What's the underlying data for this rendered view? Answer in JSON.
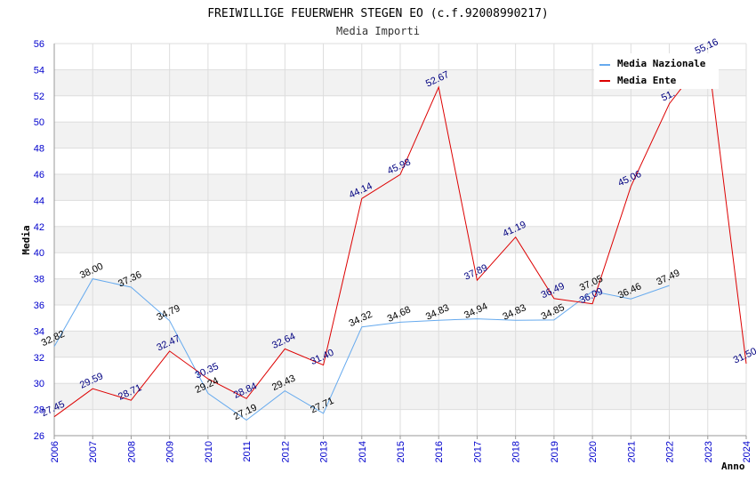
{
  "chart_data": {
    "type": "line",
    "title": "FREIWILLIGE FEUERWEHR STEGEN EO (c.f.92008990217)",
    "subtitle": "Media Importi",
    "xlabel": "Anno",
    "ylabel": "Media",
    "ylim": [
      26,
      56
    ],
    "yticks": [
      "26",
      "28",
      "30",
      "32",
      "34",
      "36",
      "38",
      "40",
      "42",
      "44",
      "46",
      "48",
      "50",
      "52",
      "54",
      "56"
    ],
    "x": [
      "2006",
      "2007",
      "2008",
      "2009",
      "2010",
      "2011",
      "2012",
      "2013",
      "2014",
      "2015",
      "2016",
      "2017",
      "2018",
      "2019",
      "2020",
      "2021",
      "2022",
      "2023",
      "2024"
    ],
    "legend_position": "top-right",
    "grid": true,
    "series": [
      {
        "name": "Media Nazionale",
        "color": "#66aaee",
        "values": [
          32.82,
          38.0,
          37.36,
          34.79,
          29.24,
          27.19,
          29.43,
          27.71,
          34.32,
          34.68,
          34.83,
          34.94,
          34.83,
          34.85,
          37.05,
          36.46,
          37.49,
          null,
          null
        ],
        "labels": [
          "32.82",
          "38.00",
          "37.36",
          "34.79",
          "29.24",
          "27.19",
          "29.43",
          "27.71",
          "34.32",
          "34.68",
          "34.83",
          "34.94",
          "34.83",
          "34.85",
          "37.05",
          "36.46",
          "37.49",
          null,
          null
        ]
      },
      {
        "name": "Media Ente",
        "color": "#dd0000",
        "values": [
          27.45,
          29.59,
          28.71,
          32.47,
          30.35,
          28.84,
          32.64,
          31.4,
          44.14,
          45.98,
          52.67,
          37.89,
          41.19,
          36.49,
          36.09,
          45.06,
          51.4,
          55.16,
          31.5
        ],
        "labels": [
          "27.45",
          "29.59",
          "28.71",
          "32.47",
          "30.35",
          "28.84",
          "32.64",
          "31.40",
          "44.14",
          "45.98",
          "52.67",
          "37.89",
          "41.19",
          "36.49",
          "36.09",
          "45.06",
          "51.",
          "55.16",
          "31.50"
        ]
      }
    ]
  }
}
